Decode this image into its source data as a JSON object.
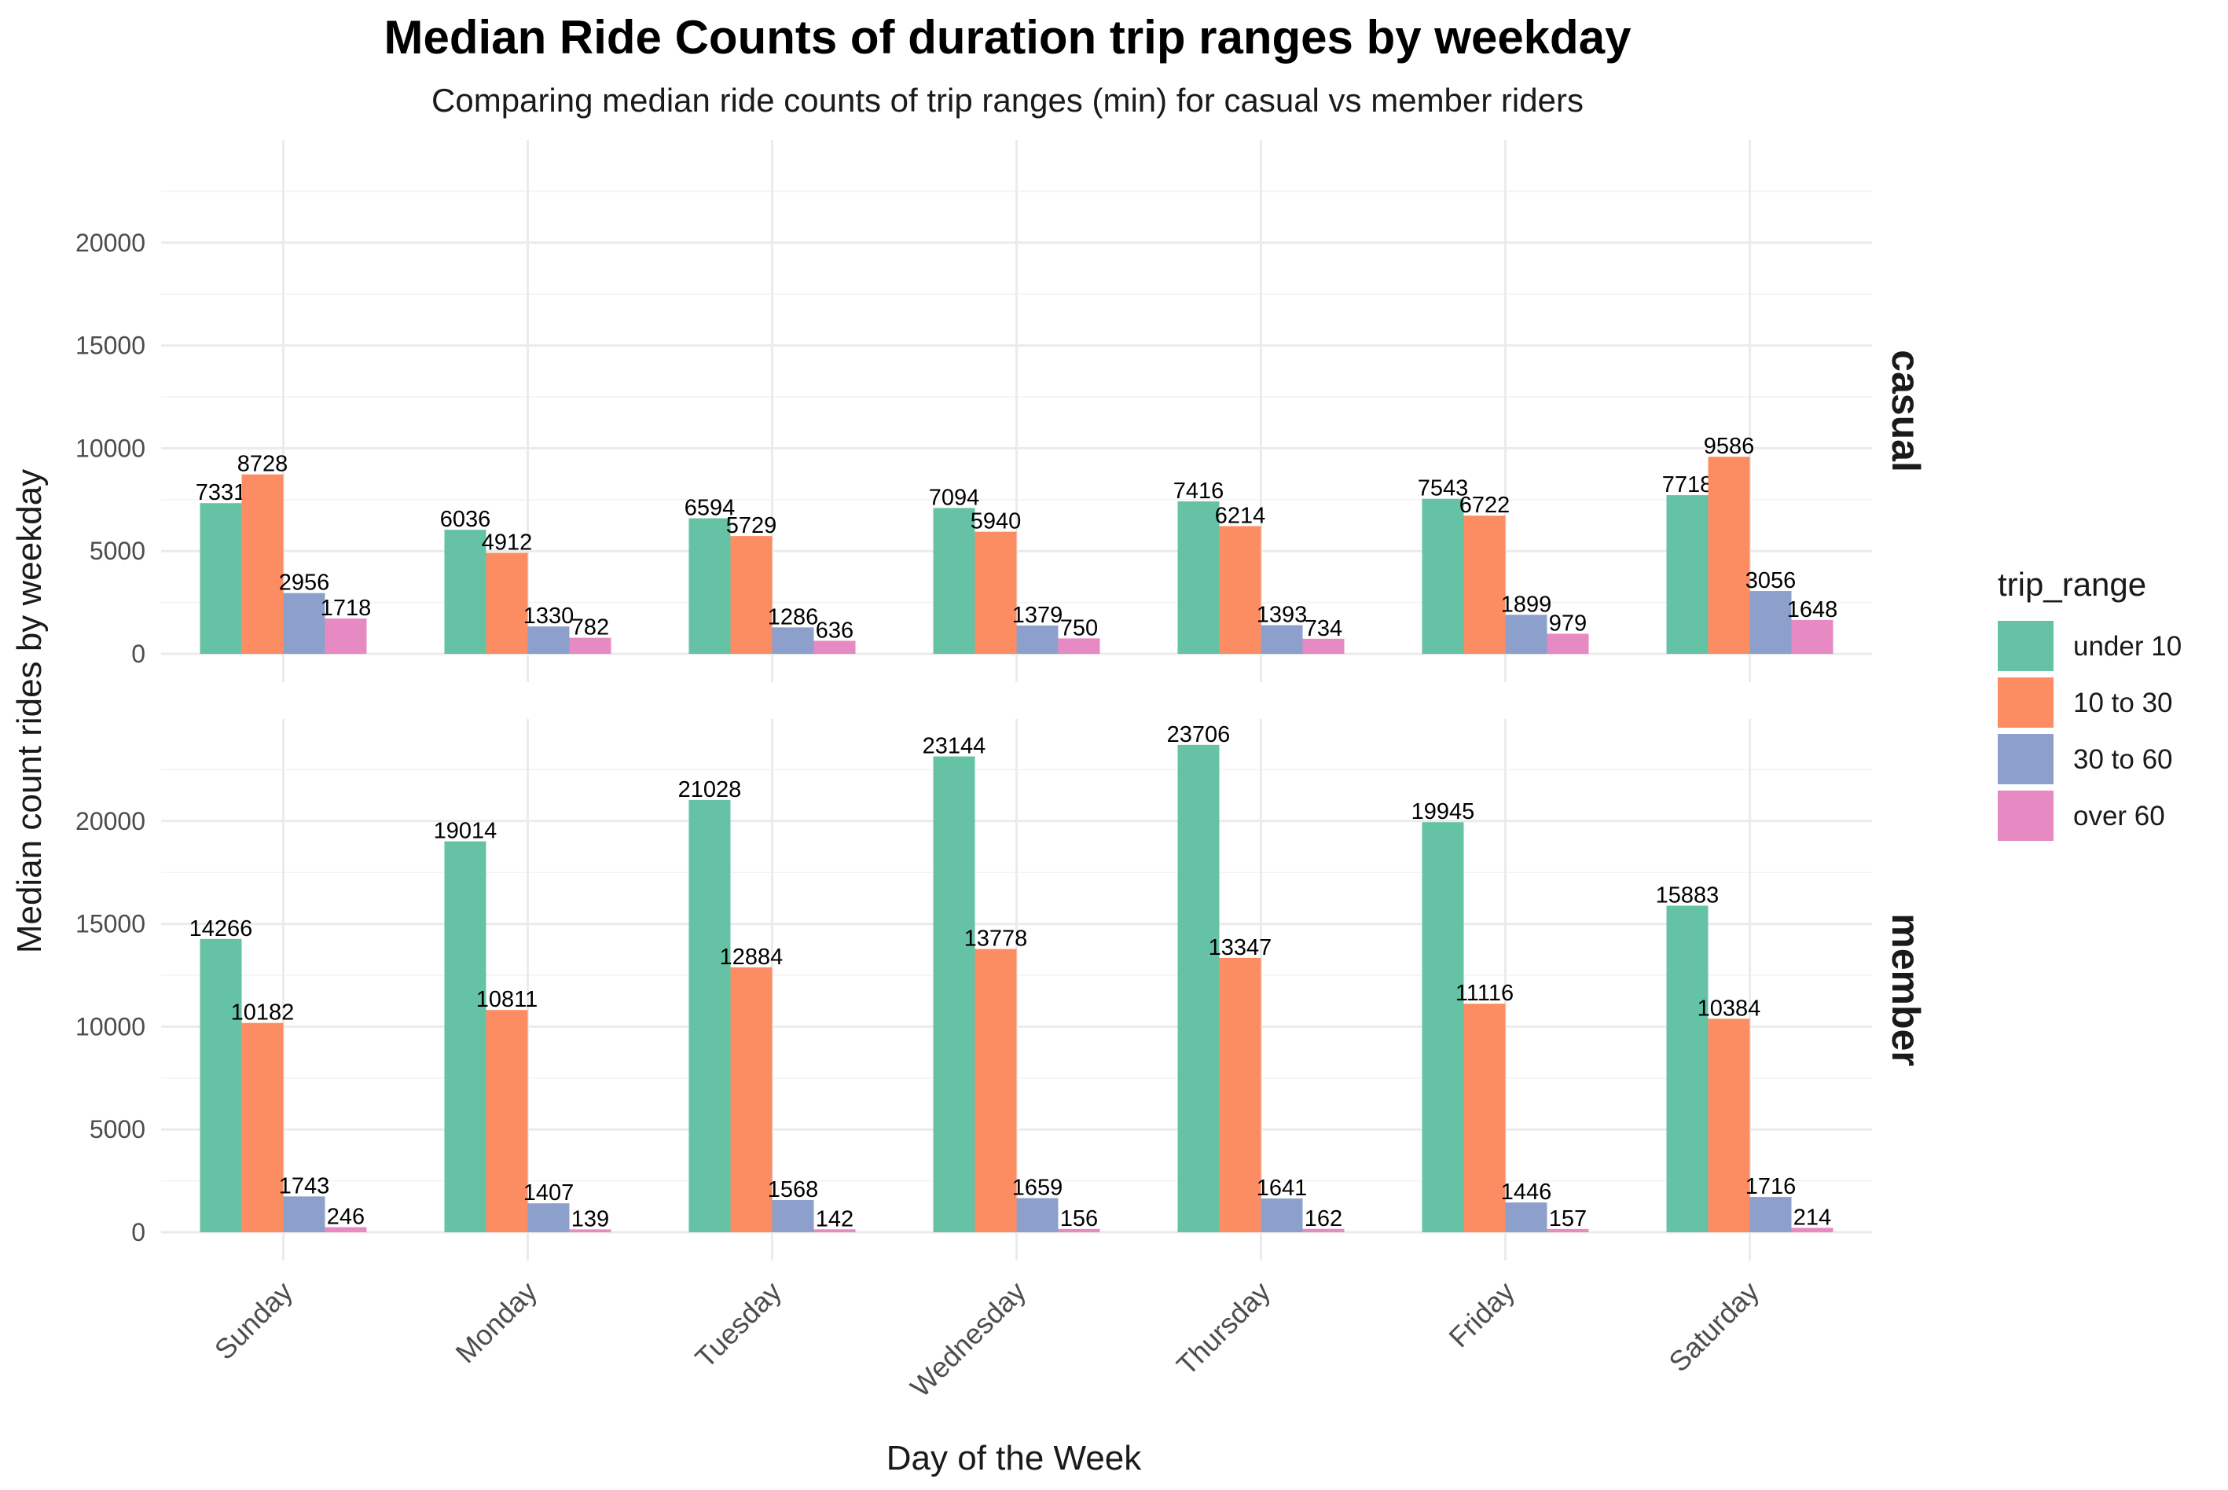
{
  "chart_data": {
    "type": "bar",
    "title": "Median Ride Counts of duration trip ranges by weekday",
    "subtitle": "Comparing median ride counts of trip ranges (min) for casual vs member riders",
    "xlabel": "Day of the Week",
    "ylabel": "Median count rides by weekday",
    "categories": [
      "Sunday",
      "Monday",
      "Tuesday",
      "Wednesday",
      "Thursday",
      "Friday",
      "Saturday"
    ],
    "y_ticks": [
      "0",
      "5000",
      "10000",
      "15000",
      "20000"
    ],
    "ylim": [
      0,
      25000
    ],
    "grid": true,
    "legend": {
      "title": "trip_range",
      "position": "right",
      "entries": [
        "under 10",
        "10 to 30",
        "30 to 60",
        "over 60"
      ]
    },
    "colors": {
      "under 10": "#66c2a5",
      "10 to 30": "#fc8d62",
      "30 to 60": "#8da0cb",
      "over 60": "#e78ac3"
    },
    "facets": [
      {
        "label": "casual",
        "series": [
          {
            "name": "under 10",
            "values": [
              7331,
              6036,
              6594,
              7094,
              7416,
              7543,
              7718
            ]
          },
          {
            "name": "10 to 30",
            "values": [
              8728,
              4912,
              5729,
              5940,
              6214,
              6722,
              9586
            ]
          },
          {
            "name": "30 to 60",
            "values": [
              2956,
              1330,
              1286,
              1379,
              1393,
              1899,
              3056
            ]
          },
          {
            "name": "over 60",
            "values": [
              1718,
              782,
              636,
              750,
              734,
              979,
              1648
            ]
          }
        ]
      },
      {
        "label": "member",
        "series": [
          {
            "name": "under 10",
            "values": [
              14266,
              19014,
              21028,
              23144,
              23706,
              19945,
              15883
            ]
          },
          {
            "name": "10 to 30",
            "values": [
              10182,
              10811,
              12884,
              13778,
              13347,
              11116,
              10384
            ]
          },
          {
            "name": "30 to 60",
            "values": [
              1743,
              1407,
              1568,
              1659,
              1641,
              1446,
              1716
            ]
          },
          {
            "name": "over 60",
            "values": [
              246,
              139,
              142,
              156,
              162,
              157,
              214
            ]
          }
        ]
      }
    ]
  }
}
